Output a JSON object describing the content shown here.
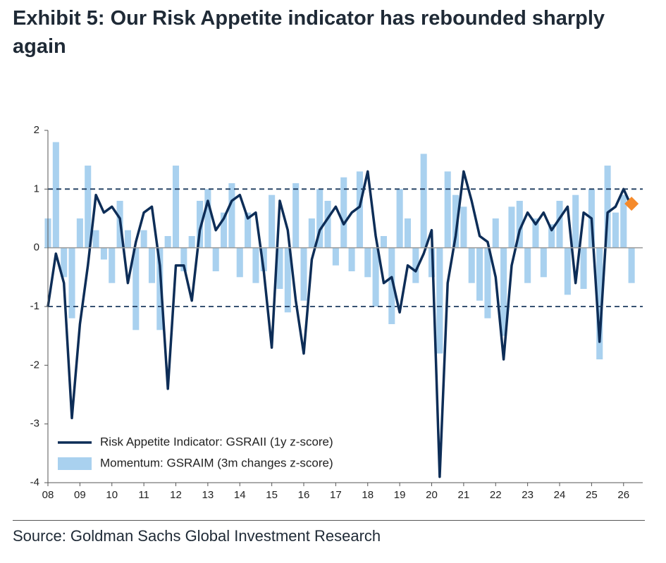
{
  "chart_data": {
    "type": "line",
    "title": "Exhibit 5: Our Risk Appetite indicator has rebounded sharply again",
    "source": "Source: Goldman Sachs Global Investment Research",
    "xlim": [
      2008,
      2026.6
    ],
    "xticks": [
      {
        "value": 2008,
        "label": "08"
      },
      {
        "value": 2009,
        "label": "09"
      },
      {
        "value": 2010,
        "label": "10"
      },
      {
        "value": 2011,
        "label": "11"
      },
      {
        "value": 2012,
        "label": "12"
      },
      {
        "value": 2013,
        "label": "13"
      },
      {
        "value": 2014,
        "label": "14"
      },
      {
        "value": 2015,
        "label": "15"
      },
      {
        "value": 2016,
        "label": "16"
      },
      {
        "value": 2017,
        "label": "17"
      },
      {
        "value": 2018,
        "label": "18"
      },
      {
        "value": 2019,
        "label": "19"
      },
      {
        "value": 2020,
        "label": "20"
      },
      {
        "value": 2021,
        "label": "21"
      },
      {
        "value": 2022,
        "label": "22"
      },
      {
        "value": 2023,
        "label": "23"
      },
      {
        "value": 2024,
        "label": "24"
      },
      {
        "value": 2025,
        "label": "25"
      },
      {
        "value": 2026,
        "label": "26"
      }
    ],
    "ylim": [
      -4,
      2
    ],
    "yticks": [
      -4,
      -3,
      -2,
      -1,
      0,
      1,
      2
    ],
    "reference_lines": [
      1,
      -1
    ],
    "x": [
      2008,
      2008.25,
      2008.5,
      2008.75,
      2009,
      2009.25,
      2009.5,
      2009.75,
      2010,
      2010.25,
      2010.5,
      2010.75,
      2011,
      2011.25,
      2011.5,
      2011.75,
      2012,
      2012.25,
      2012.5,
      2012.75,
      2013,
      2013.25,
      2013.5,
      2013.75,
      2014,
      2014.25,
      2014.5,
      2014.75,
      2015,
      2015.25,
      2015.5,
      2015.75,
      2016,
      2016.25,
      2016.5,
      2016.75,
      2017,
      2017.25,
      2017.5,
      2017.75,
      2018,
      2018.25,
      2018.5,
      2018.75,
      2019,
      2019.25,
      2019.5,
      2019.75,
      2020,
      2020.25,
      2020.5,
      2020.75,
      2021,
      2021.25,
      2021.5,
      2021.75,
      2022,
      2022.25,
      2022.5,
      2022.75,
      2023,
      2023.25,
      2023.5,
      2023.75,
      2024,
      2024.25,
      2024.5,
      2024.75,
      2025,
      2025.25,
      2025.5,
      2025.75,
      2026,
      2026.25
    ],
    "series": [
      {
        "name": "Momentum: GSRAIM (3m changes z-score)",
        "type": "bar",
        "color": "#a9d1ef",
        "values": [
          0.5,
          1.8,
          -0.5,
          -1.2,
          0.5,
          1.4,
          0.3,
          -0.2,
          -0.6,
          0.8,
          0.3,
          -1.4,
          0.3,
          -0.6,
          -1.4,
          0.2,
          1.4,
          -0.4,
          0.2,
          0.8,
          1.0,
          -0.4,
          0.6,
          1.1,
          -0.5,
          0.6,
          -0.6,
          -0.4,
          0.9,
          -0.7,
          -1.1,
          1.1,
          -0.9,
          0.5,
          1.0,
          0.8,
          -0.3,
          1.2,
          -0.4,
          1.3,
          -0.5,
          -1.0,
          0.2,
          -1.3,
          1.0,
          0.5,
          -0.6,
          1.6,
          -0.5,
          -1.8,
          1.3,
          0.9,
          0.7,
          -0.6,
          -0.9,
          -1.2,
          0.5,
          -1.5,
          0.7,
          0.8,
          -0.6,
          0.5,
          -0.5,
          0.4,
          0.8,
          -0.8,
          0.9,
          -0.7,
          1.0,
          -1.9,
          1.4,
          0.6,
          0.9,
          -0.6
        ]
      },
      {
        "name": "Risk Appetite Indicator: GSRAII (1y z-score)",
        "type": "line",
        "color": "#0d2d57",
        "values": [
          -1.0,
          -0.1,
          -0.6,
          -2.9,
          -1.3,
          -0.3,
          0.9,
          0.6,
          0.7,
          0.5,
          -0.6,
          0.1,
          0.6,
          0.7,
          -0.3,
          -2.4,
          -0.3,
          -0.3,
          -0.9,
          0.3,
          0.8,
          0.3,
          0.5,
          0.8,
          0.9,
          0.5,
          0.6,
          -0.4,
          -1.7,
          0.8,
          0.3,
          -0.9,
          -1.8,
          -0.2,
          0.3,
          0.5,
          0.7,
          0.4,
          0.6,
          0.7,
          1.3,
          0.2,
          -0.6,
          -0.5,
          -1.1,
          -0.3,
          -0.4,
          -0.1,
          0.3,
          -3.9,
          -0.6,
          0.2,
          1.3,
          0.8,
          0.2,
          0.1,
          -0.5,
          -1.9,
          -0.3,
          0.3,
          0.6,
          0.4,
          0.6,
          0.3,
          0.5,
          0.7,
          -0.6,
          0.6,
          0.5,
          -1.6,
          0.6,
          0.7,
          1.0,
          0.7
        ]
      }
    ],
    "latest_marker": {
      "x": 2026.25,
      "y": 0.75,
      "color": "#f58a2b"
    }
  }
}
